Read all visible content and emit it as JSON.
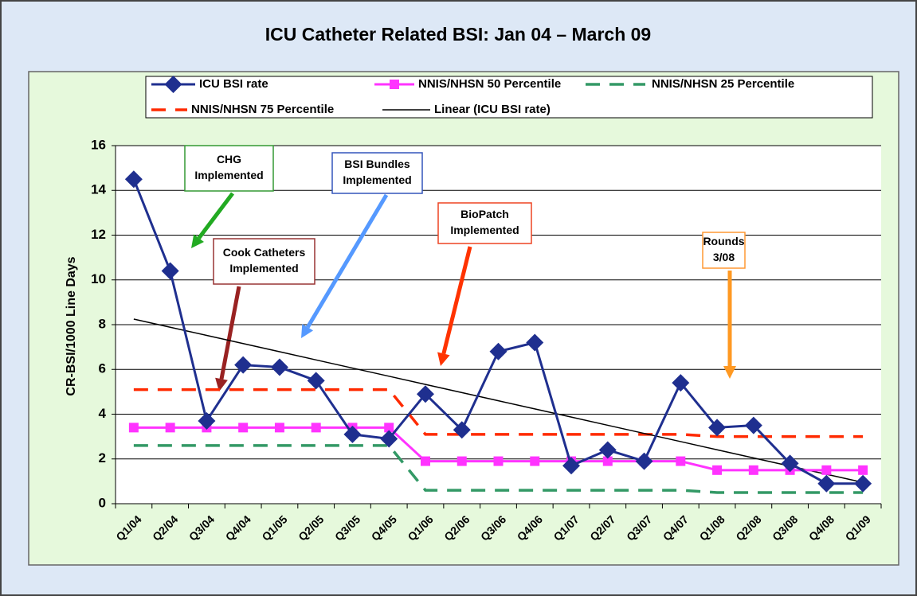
{
  "chart_data": {
    "type": "line",
    "title": "ICU Catheter Related BSI: Jan 04 – March 09",
    "y_label": "CR-BSI/1000 Line Days",
    "categories": [
      "Q1/04",
      "Q2/04",
      "Q3/04",
      "Q4/04",
      "Q1/05",
      "Q2/05",
      "Q3/05",
      "Q4/05",
      "Q1/06",
      "Q2/06",
      "Q3/06",
      "Q4/06",
      "Q1/07",
      "Q2/07",
      "Q3/07",
      "Q4/07",
      "Q1/08",
      "Q2/08",
      "Q3/08",
      "Q4/08",
      "Q1/09"
    ],
    "ylim": [
      0,
      16
    ],
    "yticks": [
      0,
      2,
      4,
      6,
      8,
      10,
      12,
      14,
      16
    ],
    "grid": true,
    "series": [
      {
        "name": "ICU BSI rate",
        "color": "#1f2f8f",
        "marker": "diamond",
        "values": [
          14.5,
          10.4,
          3.7,
          6.2,
          6.1,
          5.5,
          3.1,
          2.9,
          4.9,
          3.3,
          6.8,
          7.2,
          1.7,
          2.4,
          1.9,
          5.4,
          3.4,
          3.5,
          1.8,
          0.9,
          0.9
        ]
      },
      {
        "name": "NNIS/NHSN 50 Percentile",
        "color": "#ff33ff",
        "marker": "square",
        "values": [
          3.4,
          3.4,
          3.4,
          3.4,
          3.4,
          3.4,
          3.4,
          3.4,
          1.9,
          1.9,
          1.9,
          1.9,
          1.9,
          1.9,
          1.9,
          1.9,
          1.5,
          1.5,
          1.5,
          1.5,
          1.5
        ]
      },
      {
        "name": "NNIS/NHSN 25 Percentile",
        "color": "#339966",
        "dash": true,
        "values": [
          2.6,
          2.6,
          2.6,
          2.6,
          2.6,
          2.6,
          2.6,
          2.6,
          0.6,
          0.6,
          0.6,
          0.6,
          0.6,
          0.6,
          0.6,
          0.6,
          0.5,
          0.5,
          0.5,
          0.5,
          0.5
        ]
      },
      {
        "name": "NNIS/NHSN 75 Percentile",
        "color": "#ff2a00",
        "dash": true,
        "values": [
          5.1,
          5.1,
          5.1,
          5.1,
          5.1,
          5.1,
          5.1,
          5.1,
          3.1,
          3.1,
          3.1,
          3.1,
          3.1,
          3.1,
          3.1,
          3.1,
          3.0,
          3.0,
          3.0,
          3.0,
          3.0
        ]
      },
      {
        "name": "Linear (ICU BSI rate)",
        "color": "#000000",
        "thin": true,
        "values": [
          8.25,
          7.885,
          7.52,
          7.155,
          6.79,
          6.425,
          6.06,
          5.695,
          5.33,
          4.965,
          4.6,
          4.235,
          3.87,
          3.505,
          3.14,
          2.775,
          2.41,
          2.045,
          1.68,
          1.315,
          0.95
        ]
      }
    ],
    "annotations": [
      {
        "lines": [
          "CHG",
          "Implemented"
        ]
      },
      {
        "lines": [
          "BSI Bundles",
          "Implemented"
        ]
      },
      {
        "lines": [
          "Cook Catheters",
          "Implemented"
        ]
      },
      {
        "lines": [
          "BioPatch",
          "Implemented"
        ]
      },
      {
        "lines": [
          "Rounds",
          "3/08"
        ]
      }
    ]
  }
}
